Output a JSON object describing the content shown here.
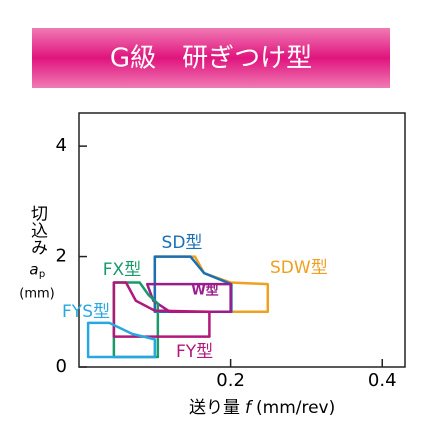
{
  "chart_data": {
    "type": "region",
    "title": "G級　研ぎつけ型",
    "xlabel": "送り量",
    "xlabel_symbol": "f",
    "xlabel_unit": "(mm/rev)",
    "ylabel": "切込み",
    "ylabel_symbol": "a",
    "ylabel_subscript": "p",
    "ylabel_unit": "(mm)",
    "xlim": [
      0,
      0.43
    ],
    "xticks": [
      0.2,
      0.4
    ],
    "ylim": [
      0,
      4.6
    ],
    "yticks": [
      0,
      2,
      4
    ],
    "series": [
      {
        "name": "SDW型",
        "color": "#f0a020",
        "x": [
          0.1,
          0.153,
          0.165,
          0.2,
          0.249,
          0.249,
          0.1
        ],
        "y": [
          2.0,
          2.0,
          1.7,
          1.53,
          1.5,
          1.0,
          1.0
        ]
      },
      {
        "name": "SD型",
        "color": "#1a6fb5",
        "x": [
          0.1,
          0.147,
          0.165,
          0.201,
          0.201,
          0.1
        ],
        "y": [
          2.0,
          2.0,
          1.7,
          1.5,
          1.0,
          1.0
        ]
      },
      {
        "name": "W型",
        "color": "#9b1c8c",
        "x": [
          0.09,
          0.2,
          0.2,
          0.12,
          0.098
        ],
        "y": [
          1.5,
          1.5,
          1.0,
          1.0,
          1.2
        ]
      },
      {
        "name": "FX型",
        "color": "#1a9a6a",
        "x": [
          0.046,
          0.08,
          0.092,
          0.104,
          0.104,
          0.046
        ],
        "y": [
          1.53,
          1.53,
          1.3,
          1.15,
          0.18,
          0.18
        ]
      },
      {
        "name": "FY型",
        "color": "#b0187a",
        "x": [
          0.046,
          0.062,
          0.075,
          0.1,
          0.172,
          0.172,
          0.046
        ],
        "y": [
          1.53,
          1.53,
          1.2,
          1.02,
          1.0,
          0.55,
          0.55
        ]
      },
      {
        "name": "FYS型",
        "color": "#29a8e0",
        "x": [
          0.012,
          0.04,
          0.07,
          0.1,
          0.1,
          0.012
        ],
        "y": [
          0.8,
          0.8,
          0.6,
          0.5,
          0.18,
          0.18
        ]
      }
    ]
  }
}
